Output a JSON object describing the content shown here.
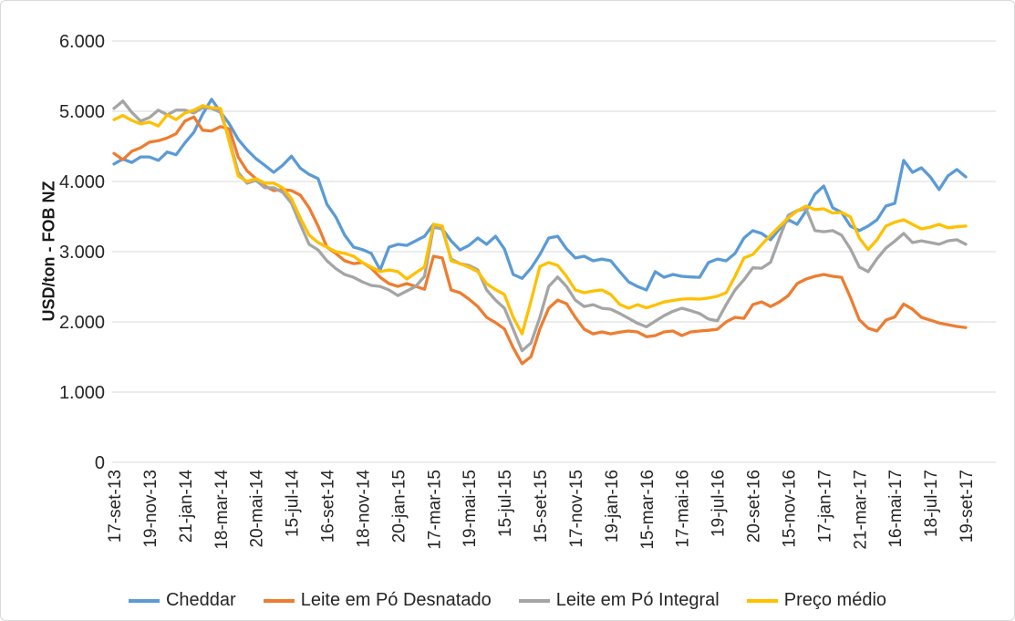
{
  "figure": {
    "background_color": "#FFFFFF",
    "border_color": "#D9D9D9",
    "text_color": "#262626",
    "gridline_color": "#D9D9D9"
  },
  "chart_data": {
    "type": "line",
    "title": "",
    "xlabel": "",
    "ylabel": "USD/ton - FOB NZ",
    "ylim": [
      0,
      6000
    ],
    "y_tick_values": [
      0,
      1000,
      2000,
      3000,
      4000,
      5000,
      6000
    ],
    "y_tick_labels": [
      "0",
      "1.000",
      "2.000",
      "3.000",
      "4.000",
      "5.000",
      "6.000"
    ],
    "grid": "horizontal",
    "legend_position": "bottom",
    "x_tick_labels": [
      "17-set-13",
      "19-nov-13",
      "21-jan-14",
      "18-mar-14",
      "20-mai-14",
      "15-jul-14",
      "16-set-14",
      "18-nov-14",
      "20-jan-15",
      "17-mar-15",
      "19-mai-15",
      "15-jul-15",
      "15-set-15",
      "17-nov-15",
      "19-jan-16",
      "15-mar-16",
      "17-mai-16",
      "19-jul-16",
      "20-set-16",
      "15-nov-16",
      "17-jan-17",
      "21-mar-17",
      "16-mai-17",
      "18-jul-17",
      "19-set-17"
    ],
    "points_per_tick": 4,
    "series": [
      {
        "name": "Cheddar",
        "color": "#5B9BD5",
        "values": [
          4250,
          4320,
          4270,
          4350,
          4350,
          4300,
          4420,
          4380,
          4550,
          4700,
          4960,
          5170,
          4990,
          4820,
          4600,
          4450,
          4325,
          4230,
          4130,
          4230,
          4360,
          4190,
          4100,
          4040,
          3675,
          3495,
          3235,
          3065,
          3030,
          2975,
          2740,
          3065,
          3105,
          3090,
          3155,
          3220,
          3390,
          3325,
          3155,
          3025,
          3090,
          3195,
          3105,
          3220,
          3040,
          2675,
          2620,
          2765,
          2960,
          3195,
          3220,
          3040,
          2910,
          2935,
          2870,
          2895,
          2870,
          2715,
          2570,
          2505,
          2455,
          2715,
          2635,
          2675,
          2650,
          2640,
          2635,
          2845,
          2895,
          2870,
          2975,
          3195,
          3300,
          3260,
          3170,
          3325,
          3455,
          3390,
          3580,
          3820,
          3935,
          3625,
          3560,
          3365,
          3300,
          3365,
          3455,
          3650,
          3690,
          4300,
          4130,
          4195,
          4065,
          3885,
          4080,
          4170,
          4065
        ]
      },
      {
        "name": "Leite em Pó Desnatado",
        "color": "#ED7D31",
        "values": [
          4400,
          4310,
          4430,
          4480,
          4560,
          4580,
          4620,
          4680,
          4860,
          4920,
          4730,
          4720,
          4780,
          4750,
          4350,
          4150,
          4040,
          3935,
          3870,
          3885,
          3870,
          3805,
          3625,
          3365,
          3065,
          2975,
          2870,
          2830,
          2845,
          2765,
          2635,
          2545,
          2505,
          2545,
          2505,
          2465,
          2935,
          2910,
          2455,
          2415,
          2325,
          2220,
          2065,
          1990,
          1900,
          1630,
          1405,
          1505,
          1900,
          2195,
          2310,
          2260,
          2065,
          1896,
          1830,
          1857,
          1830,
          1855,
          1870,
          1857,
          1790,
          1805,
          1857,
          1870,
          1805,
          1857,
          1870,
          1880,
          1895,
          2000,
          2065,
          2050,
          2245,
          2285,
          2220,
          2285,
          2375,
          2545,
          2610,
          2650,
          2675,
          2650,
          2635,
          2350,
          2030,
          1910,
          1870,
          2025,
          2070,
          2255,
          2180,
          2065,
          2025,
          1985,
          1960,
          1935,
          1920
        ]
      },
      {
        "name": "Leite em Pó Integral",
        "color": "#A5A5A5",
        "values": [
          5040,
          5145,
          4985,
          4860,
          4910,
          5015,
          4950,
          5015,
          5015,
          4975,
          5050,
          5040,
          4985,
          4600,
          4130,
          3975,
          4015,
          3910,
          3910,
          3845,
          3690,
          3390,
          3105,
          3025,
          2870,
          2760,
          2675,
          2635,
          2570,
          2520,
          2505,
          2455,
          2375,
          2440,
          2505,
          2650,
          3350,
          3325,
          2895,
          2830,
          2805,
          2740,
          2455,
          2310,
          2195,
          1895,
          1590,
          1700,
          2065,
          2505,
          2640,
          2505,
          2310,
          2220,
          2245,
          2195,
          2180,
          2120,
          2050,
          1980,
          1930,
          2010,
          2090,
          2150,
          2195,
          2160,
          2120,
          2040,
          2015,
          2245,
          2455,
          2600,
          2770,
          2765,
          2850,
          3195,
          3520,
          3585,
          3610,
          3300,
          3285,
          3300,
          3235,
          3040,
          2780,
          2715,
          2900,
          3050,
          3150,
          3260,
          3130,
          3155,
          3130,
          3105,
          3155,
          3170,
          3105
        ]
      },
      {
        "name": "Preço médio",
        "color": "#FFC000",
        "values": [
          4880,
          4940,
          4870,
          4820,
          4845,
          4790,
          4950,
          4880,
          4975,
          5015,
          5080,
          5050,
          5040,
          4560,
          4080,
          4000,
          4040,
          3975,
          3975,
          3910,
          3755,
          3480,
          3235,
          3130,
          3065,
          3000,
          2975,
          2935,
          2845,
          2780,
          2715,
          2740,
          2715,
          2610,
          2700,
          2780,
          3390,
          3365,
          2870,
          2830,
          2780,
          2715,
          2545,
          2460,
          2390,
          2065,
          1830,
          2300,
          2790,
          2845,
          2805,
          2650,
          2455,
          2415,
          2440,
          2455,
          2390,
          2250,
          2195,
          2245,
          2200,
          2240,
          2285,
          2305,
          2325,
          2330,
          2325,
          2340,
          2365,
          2415,
          2650,
          2910,
          2960,
          3100,
          3235,
          3360,
          3480,
          3580,
          3650,
          3600,
          3610,
          3550,
          3560,
          3495,
          3195,
          3030,
          3170,
          3365,
          3420,
          3455,
          3390,
          3325,
          3350,
          3390,
          3340,
          3355,
          3365
        ]
      }
    ]
  }
}
